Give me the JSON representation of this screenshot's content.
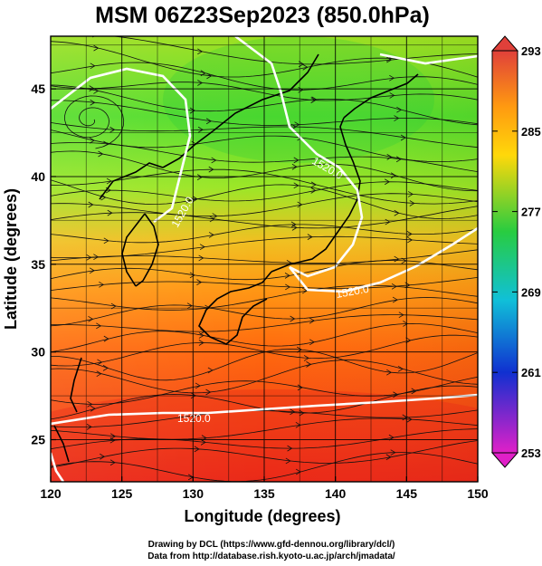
{
  "title": "MSM 06Z23Sep2023 (850.0hPa)",
  "map": {
    "xlabel": "Longitude (degrees)",
    "ylabel": "Latitude  (degrees)",
    "lon_range": [
      120,
      150
    ],
    "lat_range": [
      22.6,
      48
    ],
    "x_ticks": [
      "120",
      "125",
      "130",
      "135",
      "140",
      "145",
      "150"
    ],
    "y_ticks": [
      "25",
      "30",
      "35",
      "40",
      "45"
    ],
    "grid": true
  },
  "colorbar": {
    "ticks": [
      "293",
      "285",
      "277",
      "269",
      "261",
      "253"
    ],
    "range": [
      253,
      293
    ],
    "colors": {
      "top": "#e0403a",
      "orange": "#ff9a10",
      "yellow": "#ffd80a",
      "green": "#28cc40",
      "cyan": "#10c0d8",
      "blue": "#1030d0",
      "bottom": "#e020c8"
    }
  },
  "contour": {
    "labels": [
      "1520.0",
      "1520.0",
      "1520.0",
      "1520.0"
    ],
    "color": "#ffffff"
  },
  "credits": {
    "line1": "Drawing by DCL (https://www.gfd-dennou.org/library/dcl/)",
    "line2": "Data from http://database.rish.kyoto-u.ac.jp/arch/jmadata/"
  }
}
